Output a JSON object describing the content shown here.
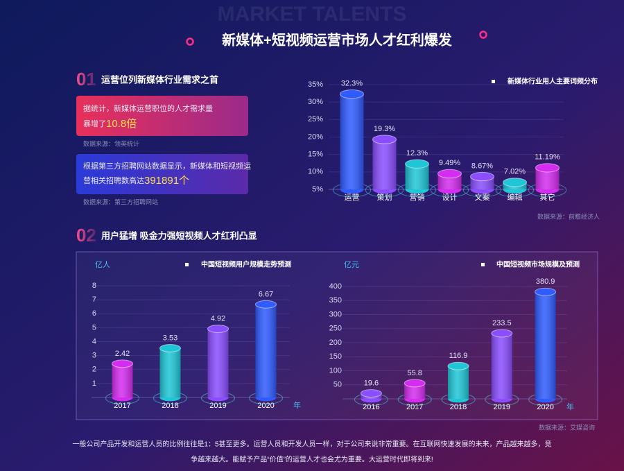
{
  "header": {
    "watermark": "MARKET TALENTS",
    "title": "新媒体+短视频运营市场人才红利爆发"
  },
  "section1": {
    "number": "01",
    "heading": "运营位列新媒体行业需求之首",
    "cards": [
      {
        "lines": [
          "据统计，新媒体运营职位的人才需求量",
          "暴增了"
        ],
        "highlight": "10.8倍",
        "source": "数据来源：领英统计"
      },
      {
        "lines": [
          "根据第三方招聘网站数据显示，新媒体和短视频运",
          "营相关招聘数高达"
        ],
        "highlight": "391891个",
        "source": "数据来源：第三方招聘网站"
      }
    ]
  },
  "section2": {
    "number": "02",
    "heading": "用户猛增 吸金力强短视频人才红利凸显"
  },
  "chart_data": [
    {
      "type": "bar",
      "legend": "新媒体行业用人主要词频分布",
      "categories": [
        "运营",
        "策划",
        "营销",
        "设计",
        "文案",
        "编辑",
        "其它"
      ],
      "values": [
        32.3,
        19.3,
        12.3,
        9.49,
        8.67,
        7.02,
        11.19
      ],
      "value_labels": [
        "32.3%",
        "19.3%",
        "12.3%",
        "9.49%",
        "8.67%",
        "7.02%",
        "11.19%"
      ],
      "colors": [
        "#2f5bff",
        "#8a4dff",
        "#1fc6d6",
        "#d42cf0",
        "#8a4dff",
        "#1fc6d6",
        "#d42cf0"
      ],
      "ylim": [
        5,
        35
      ],
      "yticks": [
        {
          "value": 35,
          "label": "35%"
        },
        {
          "value": 30,
          "label": "30%"
        },
        {
          "value": 25,
          "label": "25%"
        },
        {
          "value": 20,
          "label": "20%"
        },
        {
          "value": 15,
          "label": "15%"
        },
        {
          "value": 10,
          "label": "10%"
        },
        {
          "value": 5,
          "label": "5%"
        }
      ],
      "grid": true,
      "source": "数据来源：前瞻经济人"
    },
    {
      "type": "bar",
      "legend": "中国短视频用户规模走势预测",
      "y_unit": "亿人",
      "x_unit": "年",
      "categories": [
        "2017",
        "2018",
        "2019",
        "2020"
      ],
      "values": [
        2.42,
        3.53,
        4.92,
        6.67
      ],
      "colors": [
        "#d42cf0",
        "#1fc6d6",
        "#8a4dff",
        "#2f5bff"
      ],
      "ylim": [
        0,
        8
      ],
      "yticks": [
        8,
        7,
        6,
        5,
        4,
        3,
        2,
        1
      ],
      "grid": true
    },
    {
      "type": "bar",
      "legend": "中国短视频市场规模及预测",
      "y_unit": "亿元",
      "x_unit": "年",
      "categories": [
        "2016",
        "2017",
        "2018",
        "2019",
        "2020"
      ],
      "values": [
        19.6,
        55.8,
        116.9,
        233.5,
        380.9
      ],
      "colors": [
        "#8a4dff",
        "#d42cf0",
        "#1fc6d6",
        "#8a4dff",
        "#2f5bff"
      ],
      "ylim": [
        0,
        400
      ],
      "yticks": [
        400,
        350,
        300,
        250,
        200,
        150,
        100,
        50
      ],
      "grid": true,
      "source": "数据来源：艾媒咨询"
    }
  ],
  "footer": {
    "lines": [
      "一般公司产品开发和运营人员的比例往往是1：5甚至更多。运营人员和开发人员一样，对于公司来说非常重要。在互联网快速发展的未来，产品越来越多，竞",
      "争越来越大。能赋予产品“价值”的运营人才也会尤为重要。大运营时代即将到来!"
    ]
  }
}
